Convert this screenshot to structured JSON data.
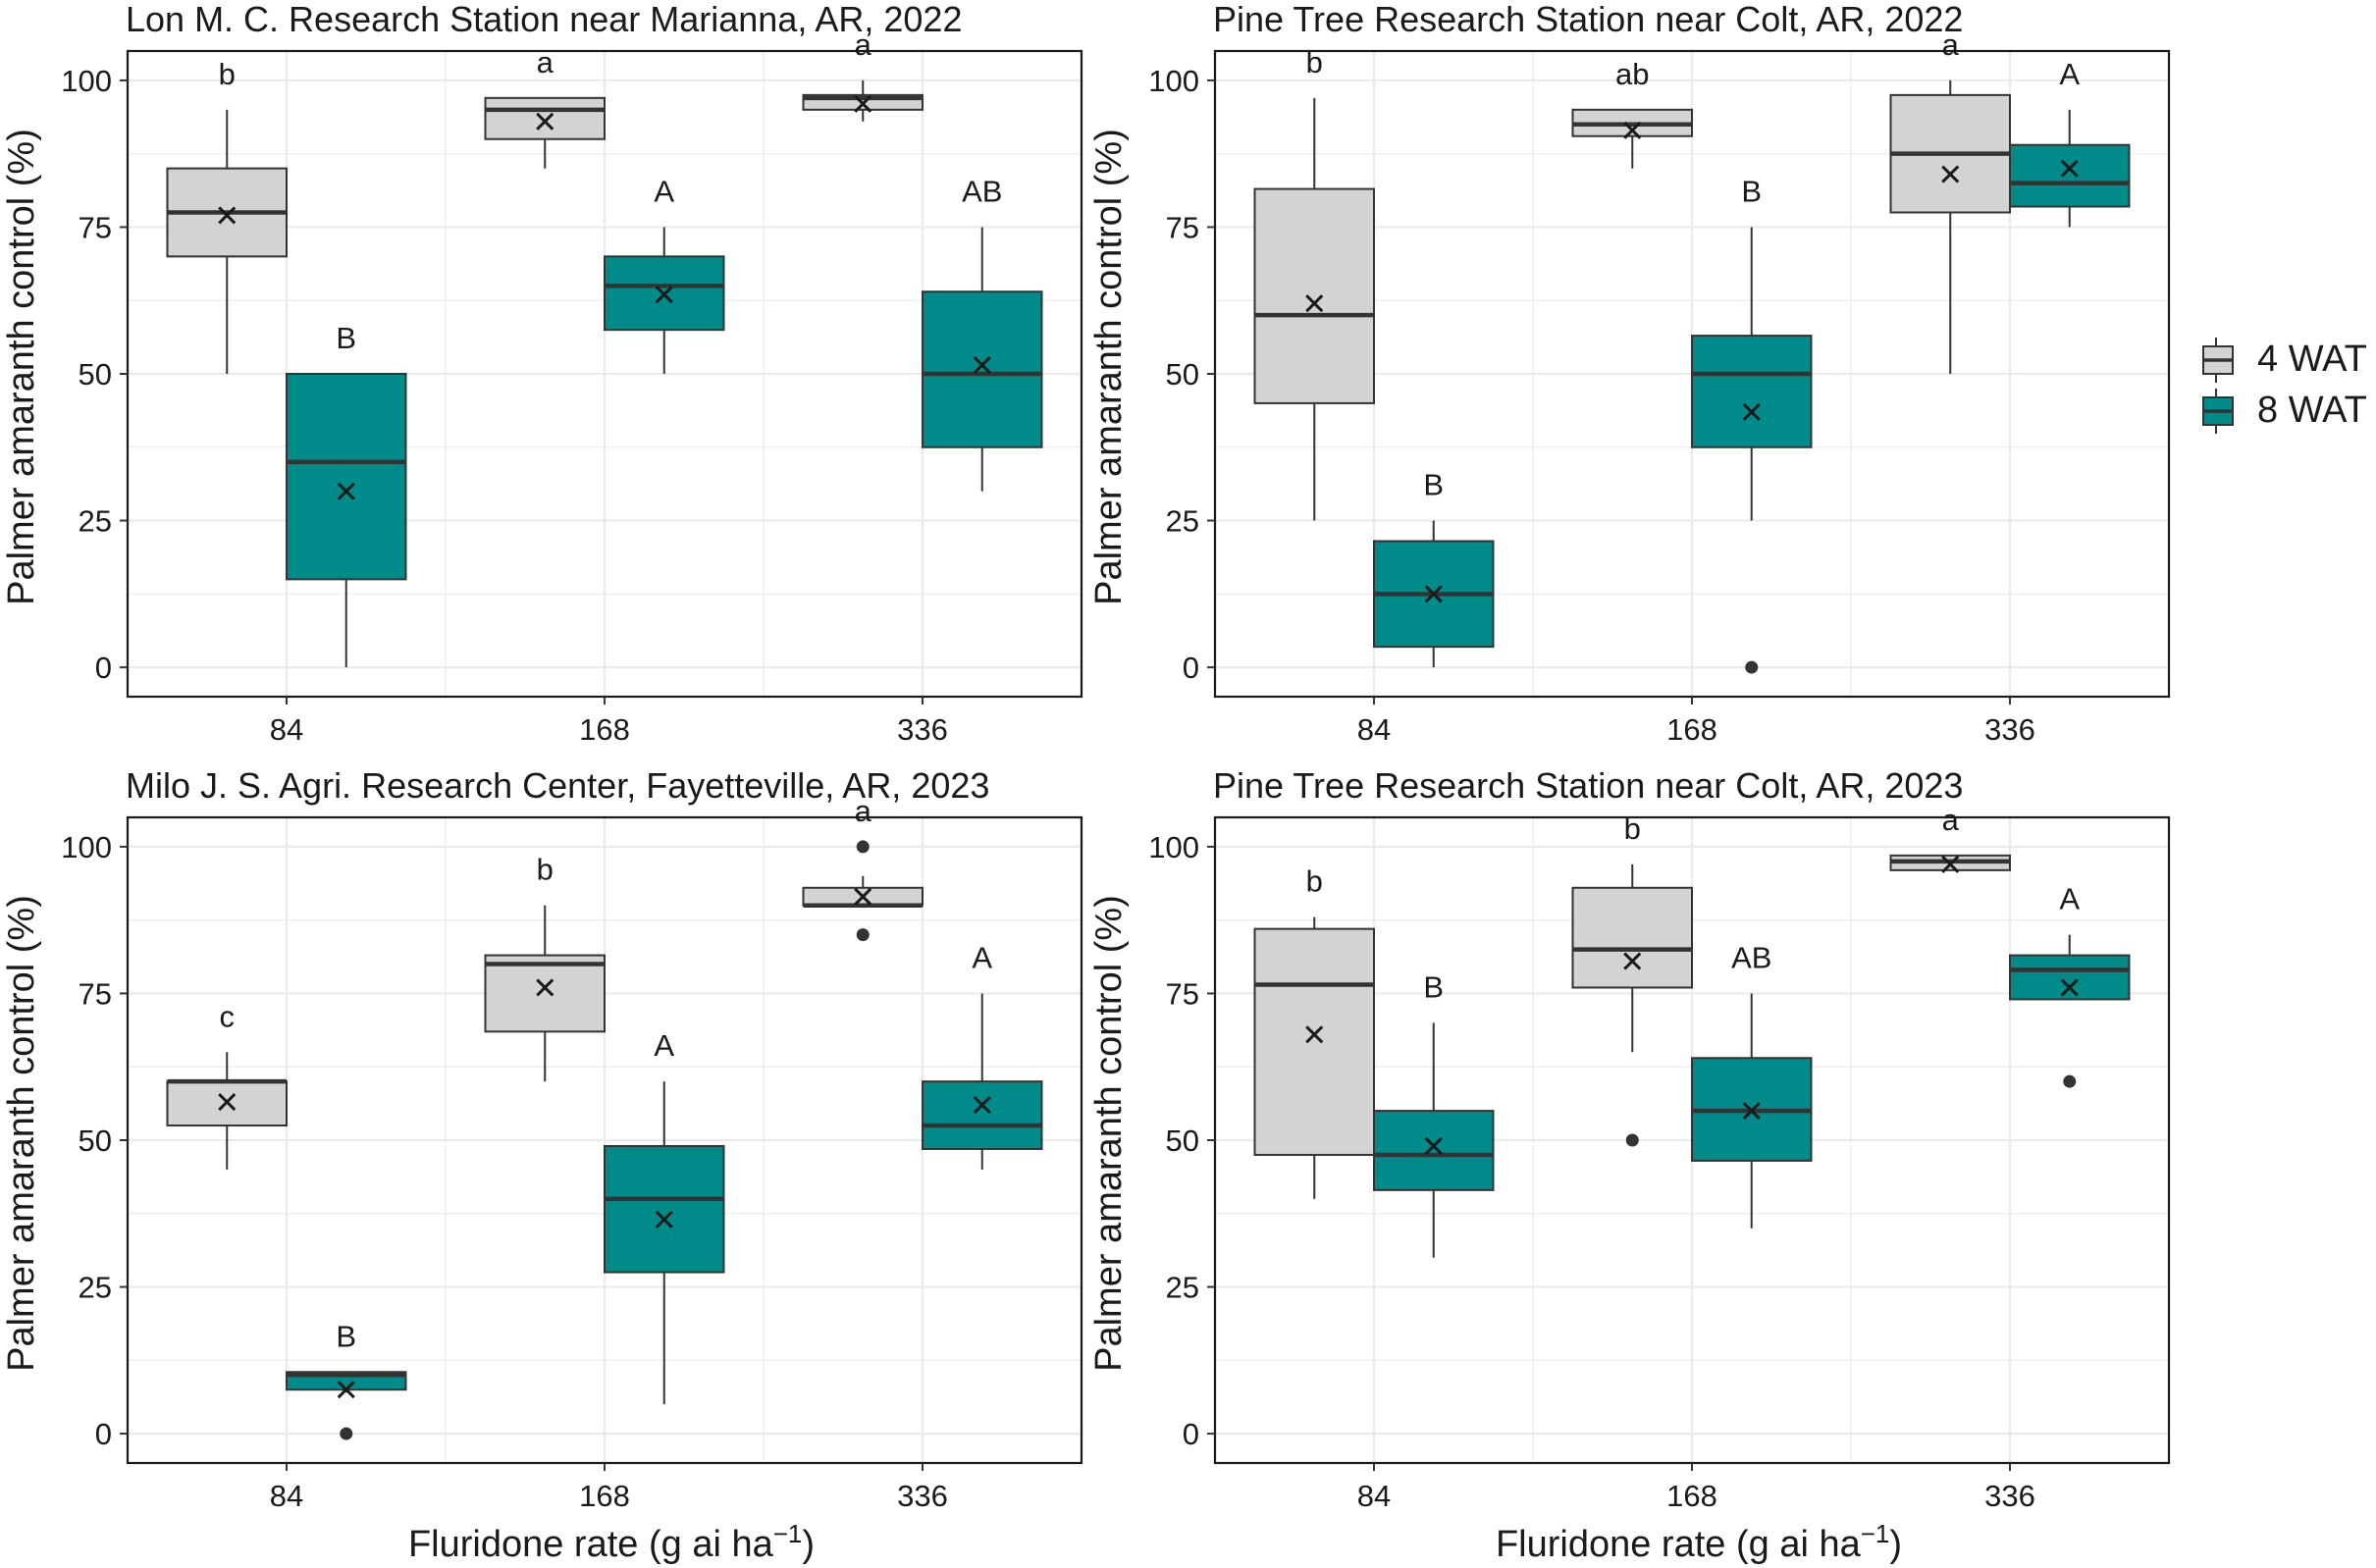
{
  "colors": {
    "wat4_fill": "#d3d3d3",
    "wat8_fill": "#008b8b",
    "box_line": "#333333",
    "median_line": "#333333",
    "grid": "#ebebeb",
    "panel_border": "#1a1a1a",
    "mean_marker": "#1a1a1a",
    "outlier": "#333333"
  },
  "icons": {
    "mean_marker": "x-mark-icon",
    "outlier_marker": "dot-icon"
  },
  "figure": {
    "y_label": "Palmer amaranth control (%)",
    "x_label_main": "Fluridone rate (g ai ha",
    "x_label_sup": "−1",
    "x_label_end": ")"
  },
  "legend": {
    "placement": "right",
    "items": [
      {
        "label": "4 WAT"
      },
      {
        "label": "8 WAT"
      }
    ]
  },
  "chart_data": [
    {
      "type": "box",
      "title": "Lon M. C. Research Station near Marianna, AR, 2022",
      "xlabel": "",
      "ylabel": "Palmer amaranth control (%)",
      "categories": [
        "84",
        "168",
        "336"
      ],
      "ylim": [
        -5,
        105
      ],
      "yticks": [
        0,
        25,
        50,
        75,
        100
      ],
      "grid": true,
      "series": [
        {
          "name": "4 WAT",
          "boxes": [
            {
              "min": 50,
              "q1": 70,
              "median": 77.5,
              "q3": 85,
              "max": 95,
              "mean": 77,
              "outliers": [],
              "letter": "b"
            },
            {
              "min": 85,
              "q1": 90,
              "median": 95,
              "q3": 97,
              "max": 97,
              "mean": 93,
              "outliers": [],
              "letter": "a"
            },
            {
              "min": 93,
              "q1": 95,
              "median": 97,
              "q3": 97.5,
              "max": 100,
              "mean": 96,
              "outliers": [],
              "letter": "a"
            }
          ]
        },
        {
          "name": "8 WAT",
          "boxes": [
            {
              "min": 0,
              "q1": 15,
              "median": 35,
              "q3": 50,
              "max": 50,
              "mean": 30,
              "outliers": [],
              "letter": "B"
            },
            {
              "min": 50,
              "q1": 57.5,
              "median": 65,
              "q3": 70,
              "max": 75,
              "mean": 63.5,
              "outliers": [],
              "letter": "A"
            },
            {
              "min": 30,
              "q1": 37.5,
              "median": 50,
              "q3": 64,
              "max": 75,
              "mean": 51.5,
              "outliers": [],
              "letter": "AB"
            }
          ]
        }
      ]
    },
    {
      "type": "box",
      "title": "Pine Tree Research Station near Colt, AR, 2022",
      "xlabel": "",
      "ylabel": "Palmer amaranth control (%)",
      "categories": [
        "84",
        "168",
        "336"
      ],
      "ylim": [
        -5,
        105
      ],
      "yticks": [
        0,
        25,
        50,
        75,
        100
      ],
      "grid": true,
      "series": [
        {
          "name": "4 WAT",
          "boxes": [
            {
              "min": 25,
              "q1": 45,
              "median": 60,
              "q3": 81.5,
              "max": 97,
              "mean": 62,
              "outliers": [],
              "letter": "b"
            },
            {
              "min": 85,
              "q1": 90.5,
              "median": 92.5,
              "q3": 95,
              "max": 95,
              "mean": 91.5,
              "outliers": [],
              "letter": "ab"
            },
            {
              "min": 50,
              "q1": 77.5,
              "median": 87.5,
              "q3": 97.5,
              "max": 100,
              "mean": 84,
              "outliers": [],
              "letter": "a"
            }
          ]
        },
        {
          "name": "8 WAT",
          "boxes": [
            {
              "min": 0,
              "q1": 3.5,
              "median": 12.5,
              "q3": 21.5,
              "max": 25,
              "mean": 12.5,
              "outliers": [],
              "letter": "B"
            },
            {
              "min": 25,
              "q1": 37.5,
              "median": 50,
              "q3": 56.5,
              "max": 75,
              "mean": 43.5,
              "outliers": [
                0
              ],
              "letter": "B"
            },
            {
              "min": 75,
              "q1": 78.5,
              "median": 82.5,
              "q3": 89,
              "max": 95,
              "mean": 85,
              "outliers": [],
              "letter": "A"
            }
          ]
        }
      ]
    },
    {
      "type": "box",
      "title": "Milo J. S. Agri. Research Center, Fayetteville, AR, 2023",
      "xlabel": "Fluridone rate (g ai ha−1)",
      "ylabel": "Palmer amaranth control (%)",
      "categories": [
        "84",
        "168",
        "336"
      ],
      "ylim": [
        -5,
        105
      ],
      "yticks": [
        0,
        25,
        50,
        75,
        100
      ],
      "grid": true,
      "series": [
        {
          "name": "4 WAT",
          "boxes": [
            {
              "min": 45,
              "q1": 52.5,
              "median": 60,
              "q3": 60,
              "max": 65,
              "mean": 56.5,
              "outliers": [],
              "letter": "c"
            },
            {
              "min": 60,
              "q1": 68.5,
              "median": 80,
              "q3": 81.5,
              "max": 90,
              "mean": 76,
              "outliers": [],
              "letter": "b"
            },
            {
              "min": 90,
              "q1": 90,
              "median": 90,
              "q3": 93,
              "max": 95,
              "mean": 91.5,
              "outliers": [
                85,
                100
              ],
              "letter": "a"
            }
          ]
        },
        {
          "name": "8 WAT",
          "boxes": [
            {
              "min": 7,
              "q1": 7.5,
              "median": 10,
              "q3": 10.5,
              "max": 10.5,
              "mean": 7.5,
              "outliers": [
                0
              ],
              "letter": "B"
            },
            {
              "min": 5,
              "q1": 27.5,
              "median": 40,
              "q3": 49,
              "max": 60,
              "mean": 36.5,
              "outliers": [],
              "letter": "A"
            },
            {
              "min": 45,
              "q1": 48.5,
              "median": 52.5,
              "q3": 60,
              "max": 75,
              "mean": 56,
              "outliers": [],
              "letter": "A"
            }
          ]
        }
      ]
    },
    {
      "type": "box",
      "title": "Pine Tree Research Station near Colt, AR, 2023",
      "xlabel": "Fluridone rate (g ai ha−1)",
      "ylabel": "Palmer amaranth control (%)",
      "categories": [
        "84",
        "168",
        "336"
      ],
      "ylim": [
        -5,
        105
      ],
      "yticks": [
        0,
        25,
        50,
        75,
        100
      ],
      "grid": true,
      "series": [
        {
          "name": "4 WAT",
          "boxes": [
            {
              "min": 40,
              "q1": 47.5,
              "median": 76.5,
              "q3": 86,
              "max": 88,
              "mean": 68,
              "outliers": [],
              "letter": "b"
            },
            {
              "min": 65,
              "q1": 76,
              "median": 82.5,
              "q3": 93,
              "max": 97,
              "mean": 80.5,
              "outliers": [
                50
              ],
              "letter": "b"
            },
            {
              "min": 96,
              "q1": 96,
              "median": 97.5,
              "q3": 98.5,
              "max": 98.5,
              "mean": 97,
              "outliers": [],
              "letter": "a"
            }
          ]
        },
        {
          "name": "8 WAT",
          "boxes": [
            {
              "min": 30,
              "q1": 41.5,
              "median": 47.5,
              "q3": 55,
              "max": 70,
              "mean": 49,
              "outliers": [],
              "letter": "B"
            },
            {
              "min": 35,
              "q1": 46.5,
              "median": 55,
              "q3": 64,
              "max": 75,
              "mean": 55,
              "outliers": [],
              "letter": "AB"
            },
            {
              "min": 74,
              "q1": 74,
              "median": 79,
              "q3": 81.5,
              "max": 85,
              "mean": 76,
              "outliers": [
                60
              ],
              "letter": "A"
            }
          ]
        }
      ]
    }
  ]
}
